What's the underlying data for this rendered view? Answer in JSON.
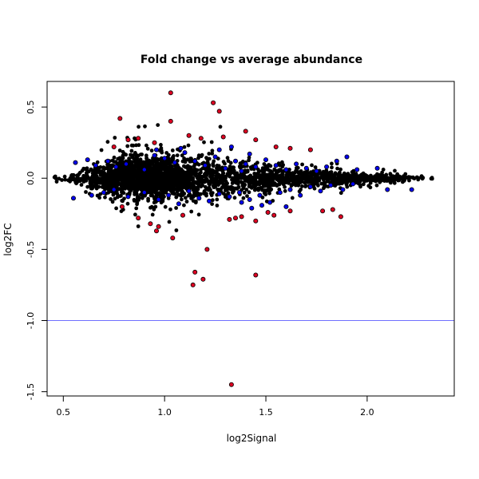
{
  "chart_data": {
    "type": "scatter",
    "title": "Fold change vs average abundance",
    "xlabel": "log2Signal",
    "ylabel": "log2FC",
    "xlim": [
      0.42,
      2.43
    ],
    "ylim": [
      -1.53,
      0.68
    ],
    "x_ticks": [
      0.5,
      1.0,
      1.5,
      2.0
    ],
    "x_tick_labels": [
      "0.5",
      "1.0",
      "1.5",
      "2.0"
    ],
    "y_ticks": [
      -1.5,
      -1.0,
      -0.5,
      0.0,
      0.5
    ],
    "y_tick_labels": [
      "-1.5",
      "-1.0",
      "-0.5",
      "0.0",
      "0.5"
    ],
    "grid": false,
    "reference_line": {
      "y": -1.0,
      "color": "#7070ff"
    },
    "colors": {
      "normal": "#000000",
      "highlight_blue": "#0000ee",
      "highlight_red": "#dd0022"
    },
    "dense_cloud_mean_halfwidth": [
      [
        0.45,
        0.008
      ],
      [
        0.55,
        0.03
      ],
      [
        0.7,
        0.06
      ],
      [
        0.85,
        0.09
      ],
      [
        1.0,
        0.09
      ],
      [
        1.2,
        0.08
      ],
      [
        1.4,
        0.065
      ],
      [
        1.6,
        0.05
      ],
      [
        1.8,
        0.035
      ],
      [
        2.0,
        0.02
      ],
      [
        2.2,
        0.01
      ],
      [
        2.36,
        0.004
      ]
    ],
    "series": [
      {
        "color_key": "highlight_red",
        "points": [
          [
            1.03,
            0.6
          ],
          [
            1.24,
            0.53
          ],
          [
            1.27,
            0.47
          ],
          [
            0.78,
            0.42
          ],
          [
            1.03,
            0.4
          ],
          [
            0.75,
            0.22
          ],
          [
            0.82,
            0.27
          ],
          [
            0.87,
            0.28
          ],
          [
            0.95,
            0.25
          ],
          [
            1.12,
            0.3
          ],
          [
            1.18,
            0.28
          ],
          [
            1.29,
            0.29
          ],
          [
            1.4,
            0.33
          ],
          [
            1.45,
            0.27
          ],
          [
            1.55,
            0.22
          ],
          [
            1.62,
            0.21
          ],
          [
            1.72,
            0.2
          ],
          [
            0.97,
            -0.34
          ],
          [
            1.04,
            -0.42
          ],
          [
            1.21,
            -0.5
          ],
          [
            1.15,
            -0.66
          ],
          [
            1.14,
            -0.75
          ],
          [
            1.19,
            -0.71
          ],
          [
            1.45,
            -0.68
          ],
          [
            1.32,
            -0.29
          ],
          [
            1.35,
            -0.28
          ],
          [
            1.54,
            -0.26
          ],
          [
            1.62,
            -0.23
          ],
          [
            1.78,
            -0.23
          ],
          [
            1.83,
            -0.22
          ],
          [
            1.87,
            -0.27
          ],
          [
            0.93,
            -0.32
          ],
          [
            0.87,
            -0.28
          ],
          [
            1.33,
            -1.45
          ],
          [
            0.96,
            -0.37
          ],
          [
            1.09,
            -0.26
          ],
          [
            1.38,
            -0.27
          ],
          [
            1.51,
            -0.24
          ],
          [
            0.79,
            -0.2
          ],
          [
            1.45,
            -0.3
          ]
        ]
      },
      {
        "color_key": "highlight_blue",
        "points": [
          [
            0.56,
            0.11
          ],
          [
            0.62,
            0.13
          ],
          [
            0.66,
            0.09
          ],
          [
            0.72,
            0.12
          ],
          [
            0.76,
            0.08
          ],
          [
            0.81,
            0.1
          ],
          [
            0.9,
            0.06
          ],
          [
            0.95,
            0.16
          ],
          [
            1.0,
            0.14
          ],
          [
            1.05,
            0.11
          ],
          [
            1.1,
            0.18
          ],
          [
            1.15,
            0.12
          ],
          [
            1.2,
            0.09
          ],
          [
            1.25,
            0.15
          ],
          [
            1.3,
            0.07
          ],
          [
            1.35,
            0.12
          ],
          [
            1.4,
            0.1
          ],
          [
            1.45,
            0.08
          ],
          [
            1.5,
            0.13
          ],
          [
            1.55,
            0.09
          ],
          [
            1.6,
            0.06
          ],
          [
            1.65,
            0.1
          ],
          [
            1.7,
            0.07
          ],
          [
            1.75,
            0.05
          ],
          [
            1.8,
            0.08
          ],
          [
            1.85,
            0.12
          ],
          [
            1.9,
            0.15
          ],
          [
            1.95,
            0.06
          ],
          [
            2.05,
            0.07
          ],
          [
            0.96,
            0.2
          ],
          [
            1.08,
            0.21
          ],
          [
            1.27,
            0.2
          ],
          [
            1.33,
            0.22
          ],
          [
            1.42,
            0.17
          ],
          [
            1.38,
            0.05
          ],
          [
            0.55,
            -0.14
          ],
          [
            0.64,
            -0.12
          ],
          [
            0.7,
            -0.1
          ],
          [
            0.75,
            -0.08
          ],
          [
            0.82,
            -0.13
          ],
          [
            0.9,
            -0.1
          ],
          [
            0.97,
            -0.15
          ],
          [
            1.02,
            -0.12
          ],
          [
            1.07,
            -0.18
          ],
          [
            1.12,
            -0.09
          ],
          [
            1.17,
            -0.14
          ],
          [
            1.22,
            -0.16
          ],
          [
            1.27,
            -0.11
          ],
          [
            1.32,
            -0.13
          ],
          [
            1.37,
            -0.1
          ],
          [
            1.42,
            -0.15
          ],
          [
            1.47,
            -0.12
          ],
          [
            1.52,
            -0.17
          ],
          [
            1.57,
            -0.1
          ],
          [
            1.62,
            -0.08
          ],
          [
            1.67,
            -0.12
          ],
          [
            1.72,
            -0.06
          ],
          [
            1.77,
            -0.09
          ],
          [
            1.82,
            -0.05
          ],
          [
            1.88,
            -0.08
          ],
          [
            1.93,
            -0.04
          ],
          [
            2.1,
            -0.08
          ],
          [
            2.22,
            -0.08
          ],
          [
            1.6,
            -0.2
          ],
          [
            1.43,
            -0.21
          ],
          [
            1.48,
            -0.19
          ],
          [
            1.38,
            -0.17
          ]
        ]
      }
    ]
  }
}
